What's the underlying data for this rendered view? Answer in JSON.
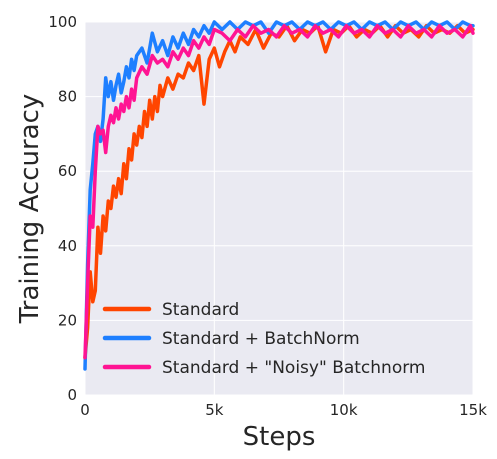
{
  "chart_data": {
    "type": "line",
    "xlabel": "Steps",
    "ylabel": "Training Accuracy",
    "xlim": [
      0,
      15000
    ],
    "ylim": [
      0,
      100
    ],
    "x_ticks": [
      {
        "value": 0,
        "label": "0"
      },
      {
        "value": 5000,
        "label": "5k"
      },
      {
        "value": 10000,
        "label": "10k"
      },
      {
        "value": 15000,
        "label": "15k"
      }
    ],
    "y_ticks": [
      {
        "value": 0,
        "label": "0"
      },
      {
        "value": 20,
        "label": "20"
      },
      {
        "value": 40,
        "label": "40"
      },
      {
        "value": 60,
        "label": "60"
      },
      {
        "value": 80,
        "label": "80"
      },
      {
        "value": 100,
        "label": "100"
      }
    ],
    "grid": true,
    "background": "#eaeaf2",
    "legend_position": "lower-left",
    "series": [
      {
        "name": "Standard",
        "color": "#ff4500",
        "x": [
          0,
          100,
          200,
          300,
          400,
          500,
          600,
          700,
          800,
          900,
          1000,
          1100,
          1200,
          1300,
          1400,
          1500,
          1600,
          1700,
          1800,
          1900,
          2000,
          2100,
          2200,
          2300,
          2400,
          2500,
          2600,
          2700,
          2800,
          2900,
          3000,
          3200,
          3400,
          3600,
          3800,
          4000,
          4200,
          4400,
          4600,
          4800,
          5000,
          5200,
          5400,
          5600,
          5800,
          6000,
          6300,
          6600,
          6900,
          7200,
          7500,
          7800,
          8100,
          8400,
          8700,
          9000,
          9300,
          9600,
          9900,
          10200,
          10500,
          10800,
          11100,
          11400,
          11700,
          12000,
          12300,
          12600,
          12900,
          13200,
          13500,
          13800,
          14100,
          14400,
          14700,
          15000
        ],
        "y": [
          10,
          18,
          33,
          25,
          28,
          45,
          38,
          48,
          44,
          52,
          50,
          56,
          53,
          58,
          54,
          62,
          58,
          66,
          63,
          70,
          67,
          72,
          69,
          76,
          72,
          79,
          74,
          80,
          76,
          83,
          80,
          85,
          82,
          86,
          85,
          89,
          87,
          91,
          78,
          90,
          93,
          88,
          92,
          95,
          92,
          96,
          94,
          98,
          93,
          97,
          96,
          99,
          95,
          98,
          97,
          99,
          92,
          98,
          97,
          99,
          96,
          98,
          97,
          99,
          96,
          99,
          97,
          98,
          96,
          99,
          97,
          98,
          97,
          99,
          97,
          98
        ]
      },
      {
        "name": "Standard + BatchNorm",
        "color": "#1e7fff",
        "x": [
          0,
          100,
          200,
          300,
          400,
          500,
          600,
          700,
          800,
          900,
          1000,
          1100,
          1200,
          1300,
          1400,
          1500,
          1600,
          1700,
          1800,
          1900,
          2000,
          2200,
          2400,
          2600,
          2800,
          3000,
          3200,
          3400,
          3600,
          3800,
          4000,
          4200,
          4400,
          4600,
          4800,
          5000,
          5300,
          5600,
          5900,
          6200,
          6500,
          6800,
          7100,
          7400,
          7700,
          8000,
          8300,
          8600,
          8900,
          9200,
          9500,
          9800,
          10100,
          10400,
          10700,
          11000,
          11300,
          11600,
          11900,
          12200,
          12500,
          12800,
          13100,
          13400,
          13700,
          14000,
          14300,
          14600,
          14900,
          15000
        ],
        "y": [
          7,
          35,
          55,
          62,
          70,
          72,
          68,
          74,
          85,
          80,
          84,
          79,
          83,
          86,
          81,
          84,
          88,
          85,
          90,
          87,
          91,
          93,
          89,
          97,
          92,
          95,
          91,
          96,
          93,
          97,
          94,
          98,
          96,
          99,
          97,
          100,
          98,
          100,
          98,
          100,
          99,
          100,
          97,
          100,
          99,
          100,
          98,
          100,
          99,
          100,
          98,
          100,
          99,
          100,
          98,
          100,
          99,
          100,
          98,
          100,
          99,
          100,
          98,
          100,
          99,
          100,
          98,
          100,
          99,
          99
        ]
      },
      {
        "name": "Standard + \"Noisy\" Batchnorm",
        "color": "#ff1493",
        "x": [
          0,
          100,
          200,
          300,
          400,
          500,
          600,
          700,
          800,
          900,
          1000,
          1100,
          1200,
          1300,
          1400,
          1500,
          1600,
          1700,
          1800,
          1900,
          2000,
          2200,
          2400,
          2600,
          2800,
          3000,
          3200,
          3400,
          3600,
          3800,
          4000,
          4200,
          4400,
          4600,
          4800,
          5000,
          5300,
          5600,
          5900,
          6200,
          6500,
          6800,
          7100,
          7400,
          7700,
          8000,
          8300,
          8600,
          8900,
          9200,
          9500,
          9800,
          10100,
          10400,
          10700,
          11000,
          11300,
          11600,
          11900,
          12200,
          12500,
          12800,
          13100,
          13400,
          13700,
          14000,
          14300,
          14600,
          14900,
          15000
        ],
        "y": [
          10,
          30,
          48,
          45,
          60,
          72,
          70,
          71,
          65,
          72,
          75,
          73,
          77,
          74,
          78,
          76,
          80,
          77,
          82,
          79,
          85,
          88,
          86,
          91,
          89,
          90,
          88,
          92,
          90,
          93,
          91,
          95,
          93,
          96,
          94,
          98,
          97,
          95,
          98,
          96,
          99,
          97,
          98,
          96,
          99,
          97,
          98,
          96,
          99,
          97,
          98,
          96,
          99,
          97,
          98,
          96,
          99,
          97,
          98,
          96,
          99,
          97,
          98,
          96,
          99,
          97,
          98,
          96,
          99,
          97
        ]
      }
    ]
  }
}
